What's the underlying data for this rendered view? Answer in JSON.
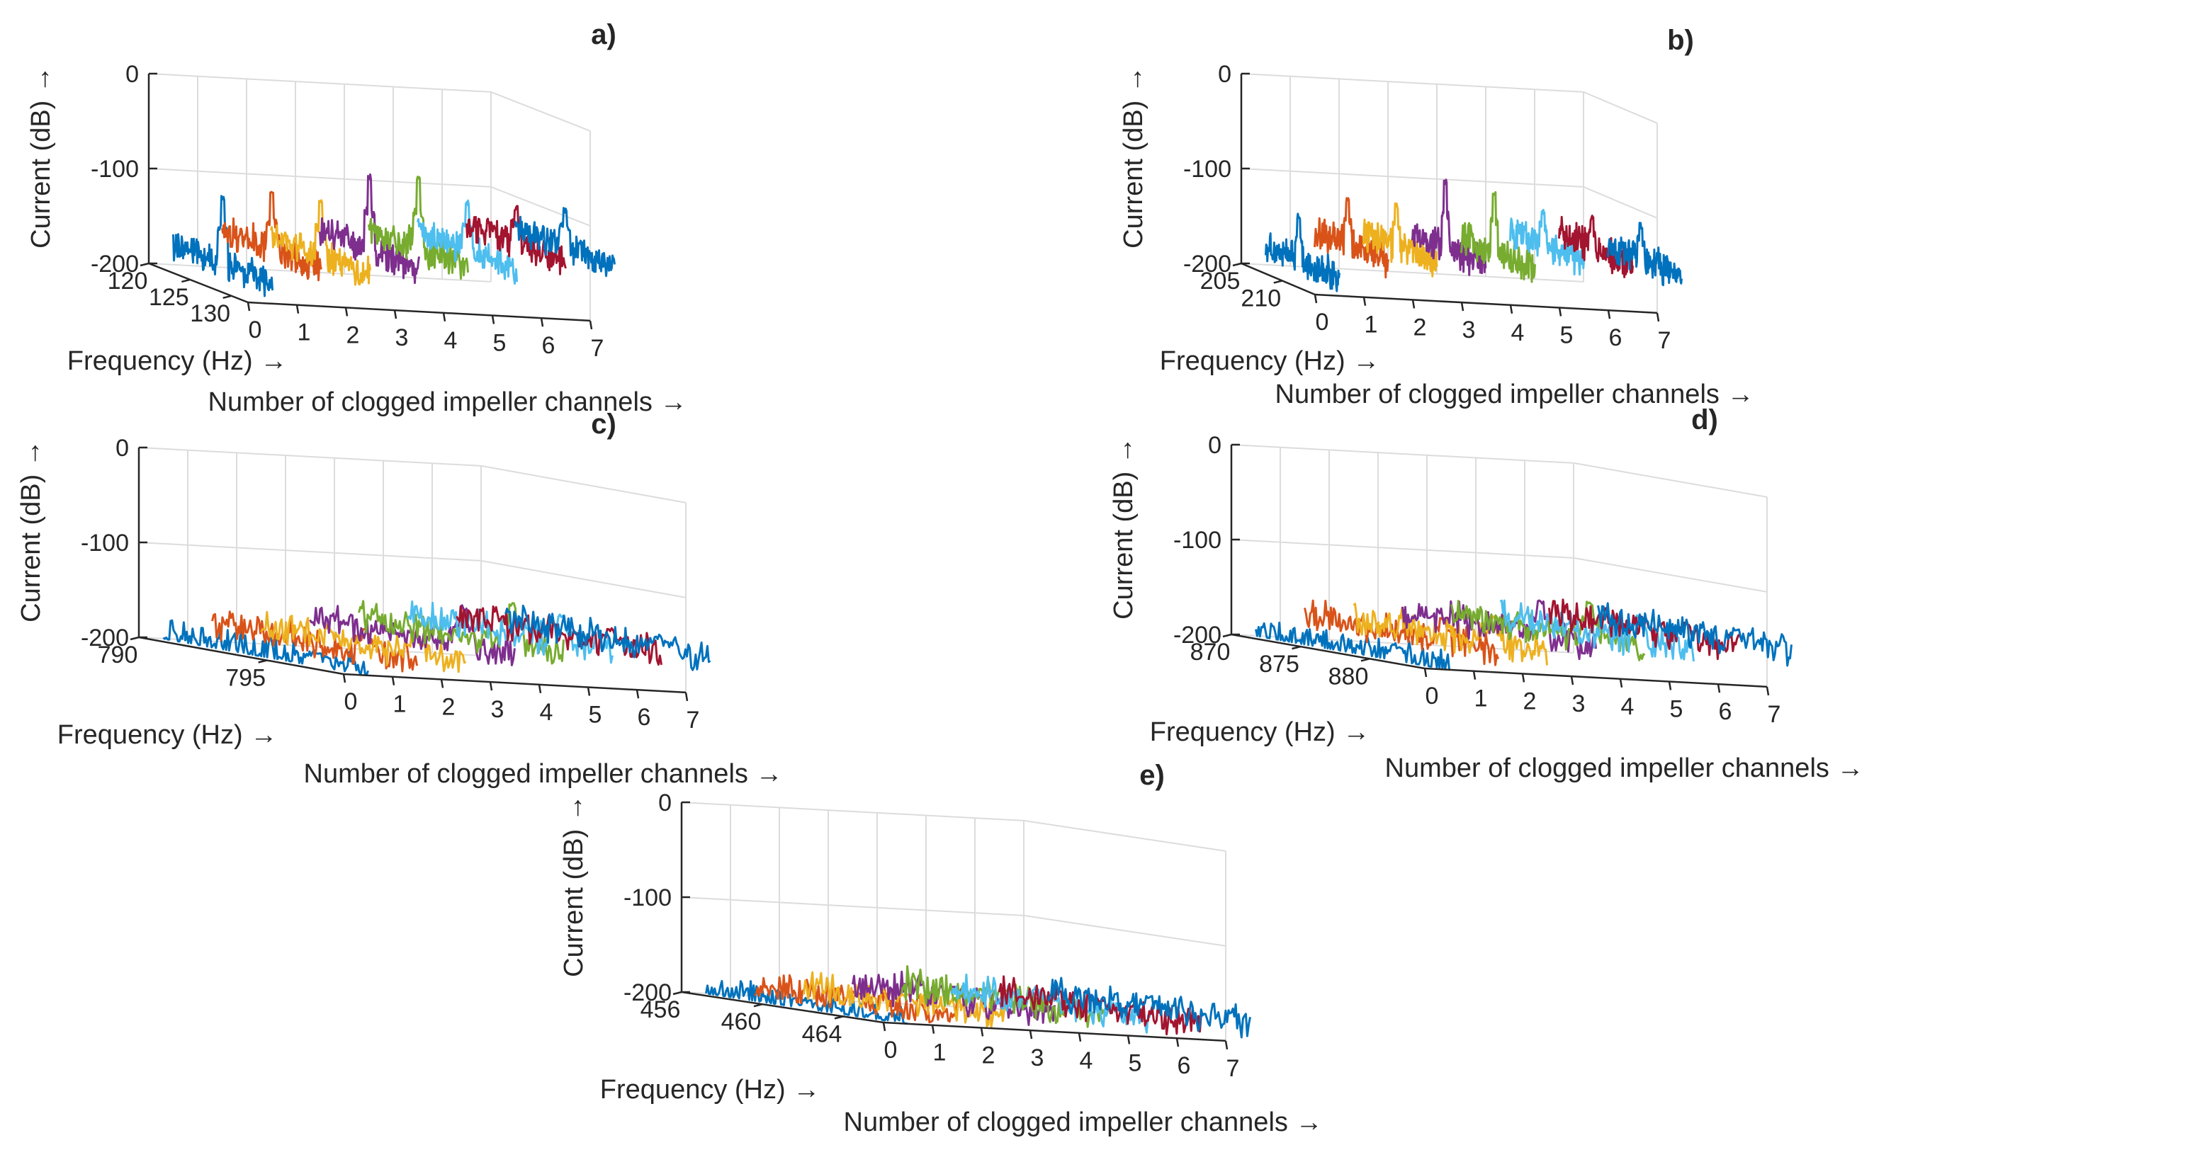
{
  "colors": [
    "#0072BD",
    "#D95319",
    "#EDB120",
    "#7E2F8E",
    "#77AC30",
    "#4DBEEE",
    "#A2142F",
    "#0072BD"
  ],
  "chart_data": [
    {
      "type": "line",
      "title": "a)",
      "xlabel": "Frequency (Hz) →",
      "ylabel": "Current (dB) →",
      "zlabel": "Number of clogged impeller channels →",
      "freq_range": [
        120,
        132
      ],
      "freq_ticks": [
        120,
        125,
        130
      ],
      "z_range": [
        -200,
        0
      ],
      "z_ticks": [
        0,
        -100,
        -200
      ],
      "channel_ticks": [
        0,
        1,
        2,
        3,
        4,
        5,
        6,
        7
      ],
      "grid": true,
      "series": [
        {
          "name": "0",
          "peak_hz": 126,
          "peak_db": -110,
          "floor_db": -178
        },
        {
          "name": "1",
          "peak_hz": 126,
          "peak_db": -103,
          "floor_db": -160
        },
        {
          "name": "2",
          "peak_hz": 126,
          "peak_db": -108,
          "floor_db": -165
        },
        {
          "name": "3",
          "peak_hz": 126,
          "peak_db": -78,
          "floor_db": -155
        },
        {
          "name": "4",
          "peak_hz": 126,
          "peak_db": -78,
          "floor_db": -150
        },
        {
          "name": "5",
          "peak_hz": 126,
          "peak_db": -100,
          "floor_db": -150
        },
        {
          "name": "6",
          "peak_hz": 126,
          "peak_db": -103,
          "floor_db": -140
        },
        {
          "name": "7",
          "peak_hz": 126,
          "peak_db": -103,
          "floor_db": -140
        }
      ]
    },
    {
      "type": "line",
      "title": "b)",
      "xlabel": "Frequency (Hz) →",
      "ylabel": "Current (dB) →",
      "zlabel": "Number of clogged impeller channels →",
      "freq_range": [
        205,
        214
      ],
      "freq_ticks": [
        205,
        210
      ],
      "z_range": [
        -200,
        0
      ],
      "z_ticks": [
        0,
        -100,
        -200
      ],
      "channel_ticks": [
        0,
        1,
        2,
        3,
        4,
        5,
        6,
        7
      ],
      "grid": true,
      "series": [
        {
          "name": "0",
          "peak_hz": 209,
          "peak_db": -135,
          "floor_db": -180
        },
        {
          "name": "1",
          "peak_hz": 209,
          "peak_db": -115,
          "floor_db": -160
        },
        {
          "name": "2",
          "peak_hz": 209,
          "peak_db": -118,
          "floor_db": -160
        },
        {
          "name": "3",
          "peak_hz": 209,
          "peak_db": -90,
          "floor_db": -158
        },
        {
          "name": "4",
          "peak_hz": 209,
          "peak_db": -100,
          "floor_db": -160
        },
        {
          "name": "5",
          "peak_hz": 209,
          "peak_db": -115,
          "floor_db": -150
        },
        {
          "name": "6",
          "peak_hz": 209,
          "peak_db": -120,
          "floor_db": -150
        },
        {
          "name": "7",
          "peak_hz": 209,
          "peak_db": -125,
          "floor_db": -158
        }
      ]
    },
    {
      "type": "line",
      "title": "c)",
      "xlabel": "Frequency (Hz) →",
      "ylabel": "Current (dB) →",
      "zlabel": "Number of clogged impeller channels →",
      "freq_range": [
        790,
        798
      ],
      "freq_ticks": [
        790,
        795
      ],
      "z_range": [
        -200,
        0
      ],
      "z_ticks": [
        0,
        -100,
        -200
      ],
      "channel_ticks": [
        0,
        1,
        2,
        3,
        4,
        5,
        6,
        7
      ],
      "grid": true,
      "series": [
        {
          "name": "0",
          "peak_hz": 796,
          "peak_db": -185,
          "floor_db": -195
        },
        {
          "name": "1",
          "peak_hz": 796,
          "peak_db": -160,
          "floor_db": -180
        },
        {
          "name": "2",
          "peak_hz": 796,
          "peak_db": -160,
          "floor_db": -180
        },
        {
          "name": "3",
          "peak_hz": 796,
          "peak_db": -130,
          "floor_db": -170
        },
        {
          "name": "4",
          "peak_hz": 796,
          "peak_db": -125,
          "floor_db": -165
        },
        {
          "name": "5",
          "peak_hz": 796,
          "peak_db": -135,
          "floor_db": -160
        },
        {
          "name": "6",
          "peak_hz": 796,
          "peak_db": -145,
          "floor_db": -160
        },
        {
          "name": "7",
          "peak_hz": 796,
          "peak_db": -150,
          "floor_db": -160
        }
      ]
    },
    {
      "type": "line",
      "title": "d)",
      "xlabel": "Frequency (Hz) →",
      "ylabel": "Current (dB) →",
      "zlabel": "Number of clogged impeller channels →",
      "freq_range": [
        870,
        884
      ],
      "freq_ticks": [
        870,
        875,
        880
      ],
      "z_range": [
        -200,
        0
      ],
      "z_ticks": [
        0,
        -100,
        -200
      ],
      "channel_ticks": [
        0,
        1,
        2,
        3,
        4,
        5,
        6,
        7
      ],
      "grid": true,
      "series": [
        {
          "name": "0",
          "peak_hz": 880,
          "peak_db": -185,
          "floor_db": -195
        },
        {
          "name": "1",
          "peak_hz": 880,
          "peak_db": -155,
          "floor_db": -175
        },
        {
          "name": "2",
          "peak_hz": 880,
          "peak_db": -150,
          "floor_db": -175
        },
        {
          "name": "3",
          "peak_hz": 880,
          "peak_db": -130,
          "floor_db": -165
        },
        {
          "name": "4",
          "peak_hz": 880,
          "peak_db": -130,
          "floor_db": -165
        },
        {
          "name": "5",
          "peak_hz": 880,
          "peak_db": -140,
          "floor_db": -165
        },
        {
          "name": "6",
          "peak_hz": 880,
          "peak_db": -145,
          "floor_db": -160
        },
        {
          "name": "7",
          "peak_hz": 880,
          "peak_db": -150,
          "floor_db": -160
        }
      ]
    },
    {
      "type": "line",
      "title": "e)",
      "xlabel": "Frequency (Hz) →",
      "ylabel": "Current (dB) →",
      "zlabel": "Number of clogged impeller channels →",
      "freq_range": [
        456,
        466
      ],
      "freq_ticks": [
        456,
        460,
        464
      ],
      "z_range": [
        -200,
        0
      ],
      "z_ticks": [
        0,
        -100,
        -200
      ],
      "channel_ticks": [
        0,
        1,
        2,
        3,
        4,
        5,
        6,
        7
      ],
      "grid": true,
      "series": [
        {
          "name": "0",
          "peak_hz": 461,
          "peak_db": -192,
          "floor_db": -197
        },
        {
          "name": "1",
          "peak_hz": 461,
          "peak_db": -180,
          "floor_db": -190
        },
        {
          "name": "2",
          "peak_hz": 461,
          "peak_db": -180,
          "floor_db": -188
        },
        {
          "name": "3",
          "peak_hz": 461,
          "peak_db": -170,
          "floor_db": -180
        },
        {
          "name": "4",
          "peak_hz": 461,
          "peak_db": -170,
          "floor_db": -178
        },
        {
          "name": "5",
          "peak_hz": 461,
          "peak_db": -175,
          "floor_db": -180
        },
        {
          "name": "6",
          "peak_hz": 461,
          "peak_db": -175,
          "floor_db": -182
        },
        {
          "name": "7",
          "peak_hz": 461,
          "peak_db": -170,
          "floor_db": -180
        }
      ]
    }
  ]
}
